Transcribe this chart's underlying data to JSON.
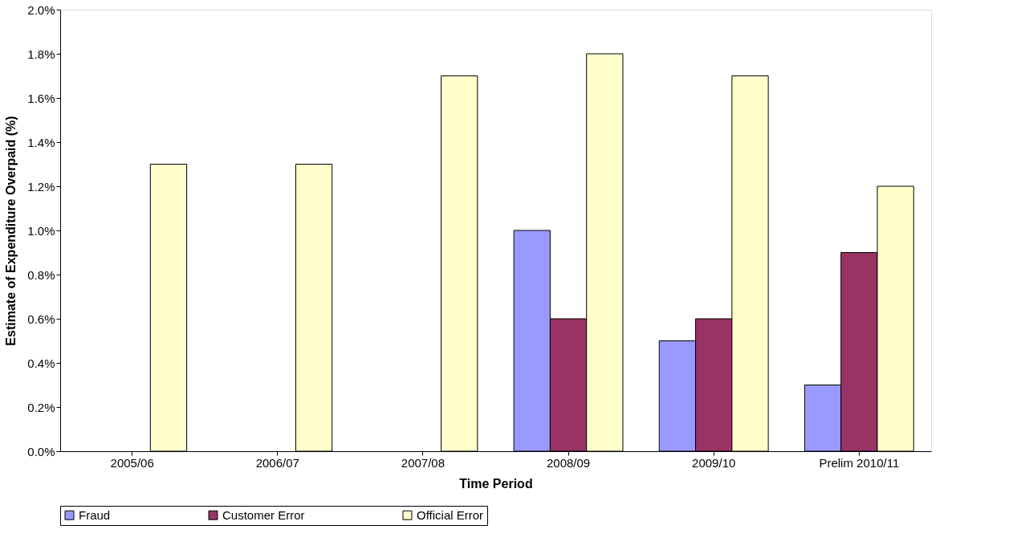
{
  "chart_data": {
    "type": "bar",
    "xlabel": "Time Period",
    "ylabel": "Estimate of Expenditure Overpaid (%)",
    "categories": [
      "2005/06",
      "2006/07",
      "2007/08",
      "2008/09",
      "2009/10",
      "Prelim 2010/11"
    ],
    "series": [
      {
        "name": "Fraud",
        "color": "#9999ff",
        "values": [
          null,
          null,
          null,
          1.0,
          0.5,
          0.3
        ]
      },
      {
        "name": "Customer Error",
        "color": "#993366",
        "values": [
          null,
          null,
          null,
          0.6,
          0.6,
          0.9
        ]
      },
      {
        "name": "Official Error",
        "color": "#ffffcc",
        "values": [
          1.3,
          1.3,
          1.7,
          1.8,
          1.7,
          1.2
        ]
      }
    ],
    "ylim": [
      0,
      2.0
    ],
    "yticks": [
      {
        "value": 0,
        "label": "0.0%"
      },
      {
        "value": 0.2,
        "label": "0.2%"
      },
      {
        "value": 0.4,
        "label": "0.4%"
      },
      {
        "value": 0.6,
        "label": "0.6%"
      },
      {
        "value": 0.8,
        "label": "0.8%"
      },
      {
        "value": 1.0,
        "label": "1.0%"
      },
      {
        "value": 1.2,
        "label": "1.2%"
      },
      {
        "value": 1.4,
        "label": "1.4%"
      },
      {
        "value": 1.6,
        "label": "1.6%"
      },
      {
        "value": 1.8,
        "label": "1.8%"
      },
      {
        "value": 2.0,
        "label": "2.0%"
      }
    ],
    "grid": false,
    "legend": "bottom"
  }
}
